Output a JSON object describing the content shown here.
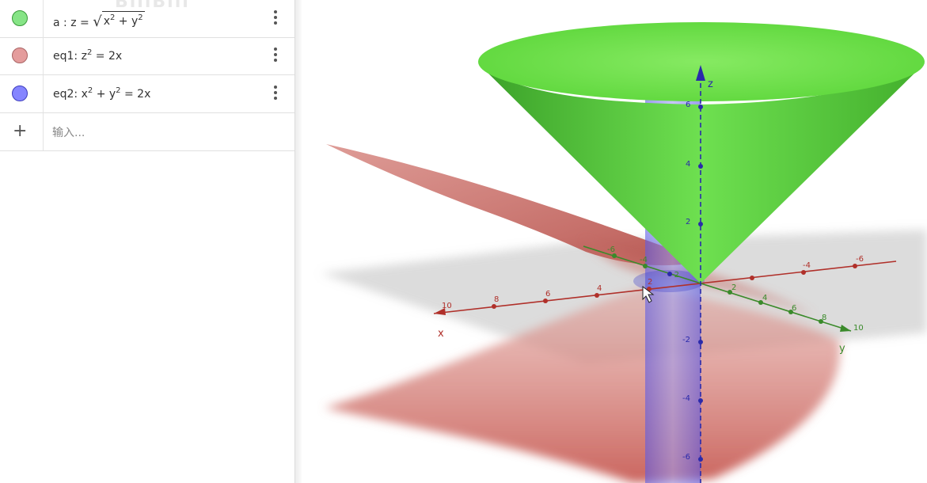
{
  "algebra": {
    "rows": [
      {
        "label": "a",
        "colon": ":",
        "color": "#66dd66",
        "border": "#3a9a3a"
      },
      {
        "label": "eq1:",
        "color": "#e49c9c",
        "border": "#a96363"
      },
      {
        "label": "eq2:",
        "color": "#8585ff",
        "border": "#3d3dbd"
      }
    ],
    "input_placeholder": "输入..."
  },
  "axes": {
    "x_label": "x",
    "y_label": "y",
    "z_label": "z",
    "x_ticks": [
      "10",
      "8",
      "6",
      "4",
      "2"
    ],
    "y_ticks": [
      "-6",
      "-4",
      "-2",
      "2",
      "4",
      "6",
      "8",
      "10"
    ],
    "y_ticks_far": [
      "-6",
      "-4"
    ],
    "z_ticks": [
      "6",
      "4",
      "2",
      "-2",
      "-4",
      "-6"
    ]
  },
  "colors": {
    "cone": "#5cd63a",
    "parabolic_cylinder": "#c9605a",
    "circular_cylinder": "#6666ee",
    "x_axis": "#b0302a",
    "y_axis": "#3a8a2a",
    "z_axis": "#2a2aaa"
  }
}
